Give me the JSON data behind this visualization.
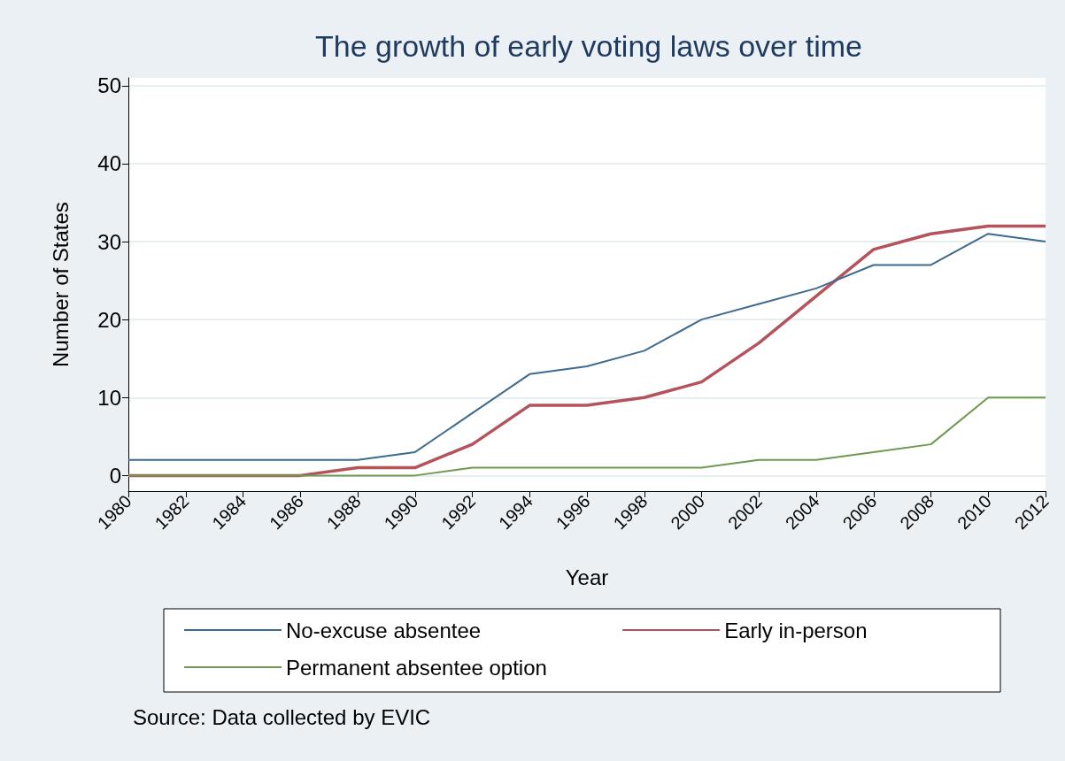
{
  "chart_data": {
    "type": "line",
    "title": "The growth of early voting laws over time",
    "xlabel": "Year",
    "ylabel": "Number of States",
    "x": [
      1980,
      1982,
      1984,
      1986,
      1988,
      1990,
      1992,
      1994,
      1996,
      1998,
      2000,
      2002,
      2004,
      2006,
      2008,
      2010,
      2012
    ],
    "series": [
      {
        "name": "No-excuse absentee",
        "color": "#3d6a8f",
        "values": [
          2,
          2,
          2,
          2,
          2,
          3,
          8,
          13,
          14,
          16,
          20,
          22,
          24,
          27,
          27,
          31,
          30
        ]
      },
      {
        "name": "Early in-person",
        "color": "#b5535c",
        "values": [
          0,
          0,
          0,
          0,
          1,
          1,
          4,
          9,
          9,
          10,
          12,
          17,
          23,
          29,
          31,
          32,
          32
        ]
      },
      {
        "name": "Permanent absentee option",
        "color": "#6f9a4e",
        "values": [
          0,
          0,
          0,
          0,
          0,
          0,
          1,
          1,
          1,
          1,
          1,
          2,
          2,
          3,
          4,
          10,
          10
        ]
      }
    ],
    "xlim": [
      1980,
      2012
    ],
    "xticks": [
      1980,
      1982,
      1984,
      1986,
      1988,
      1990,
      1992,
      1994,
      1996,
      1998,
      2000,
      2002,
      2004,
      2006,
      2008,
      2010,
      2012
    ],
    "ylim": [
      -2,
      51
    ],
    "yticks": [
      0,
      10,
      20,
      30,
      40,
      50
    ],
    "grid": "y",
    "legend": "bottom",
    "marker": "none",
    "line_style": "solid",
    "annotations": [
      "Source: Data collected by EVIC"
    ]
  }
}
